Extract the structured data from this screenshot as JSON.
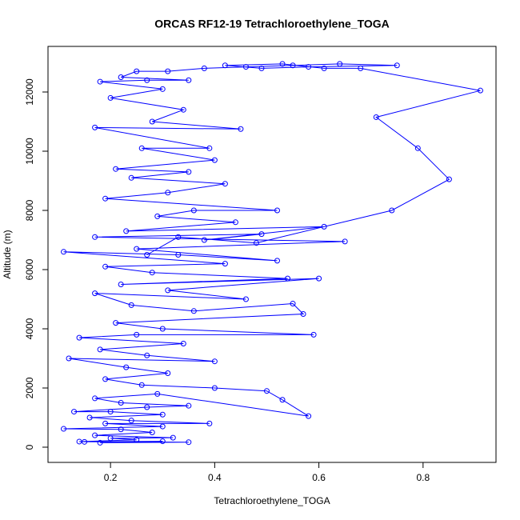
{
  "chart_data": {
    "type": "line",
    "title": "ORCAS RF12-19 Tetrachloroethylene_TOGA",
    "x_label": "Tetrachloroethylene_TOGA",
    "y_label": "Altitude (m)",
    "color": "#0000ff",
    "markers": true,
    "xlim": [
      0.08,
      0.94
    ],
    "ylim": [
      -514,
      13541
    ],
    "xticks": [
      0.2,
      0.4,
      0.6,
      0.8
    ],
    "yticks": [
      0,
      2000,
      4000,
      6000,
      8000,
      10000,
      12000
    ],
    "x": [
      0.15,
      0.3,
      0.18,
      0.35,
      0.14,
      0.25,
      0.2,
      0.32,
      0.17,
      0.28,
      0.22,
      0.11,
      0.3,
      0.19,
      0.39,
      0.24,
      0.16,
      0.3,
      0.2,
      0.13,
      0.27,
      0.35,
      0.22,
      0.17,
      0.29,
      0.58,
      0.53,
      0.5,
      0.4,
      0.26,
      0.19,
      0.31,
      0.23,
      0.12,
      0.4,
      0.27,
      0.18,
      0.34,
      0.14,
      0.25,
      0.59,
      0.3,
      0.21,
      0.57,
      0.55,
      0.36,
      0.24,
      0.17,
      0.46,
      0.31,
      0.6,
      0.22,
      0.54,
      0.28,
      0.19,
      0.42,
      0.11,
      0.33,
      0.52,
      0.25,
      0.65,
      0.17,
      0.49,
      0.38,
      0.61,
      0.23,
      0.44,
      0.29,
      0.36,
      0.52,
      0.19,
      0.31,
      0.42,
      0.24,
      0.35,
      0.21,
      0.4,
      0.26,
      0.39,
      0.17,
      0.45,
      0.28,
      0.34,
      0.2,
      0.3,
      0.18,
      0.27,
      0.35,
      0.22,
      0.25,
      0.31,
      0.38,
      0.46,
      0.55,
      0.64,
      0.75,
      0.58,
      0.49,
      0.42,
      0.53,
      0.61,
      0.68,
      0.91,
      0.71,
      0.79,
      0.85,
      0.74,
      0.48,
      0.33,
      0.27
    ],
    "values": [
      180,
      200,
      150,
      170,
      190,
      250,
      300,
      320,
      400,
      500,
      600,
      620,
      700,
      800,
      800,
      900,
      1000,
      1100,
      1200,
      1200,
      1350,
      1400,
      1500,
      1650,
      1800,
      1050,
      1600,
      1900,
      2000,
      2100,
      2300,
      2500,
      2700,
      3000,
      2900,
      3100,
      3300,
      3500,
      3700,
      3800,
      3800,
      4000,
      4200,
      4500,
      4850,
      4600,
      4800,
      5200,
      5000,
      5300,
      5700,
      5500,
      5700,
      5900,
      6100,
      6200,
      6600,
      6500,
      6300,
      6700,
      6950,
      7100,
      7200,
      7000,
      7450,
      7300,
      7600,
      7800,
      8000,
      8000,
      8400,
      8600,
      8900,
      9100,
      9300,
      9400,
      9700,
      10100,
      10100,
      10800,
      10750,
      11000,
      11400,
      11800,
      12100,
      12350,
      12400,
      12400,
      12500,
      12700,
      12700,
      12800,
      12850,
      12900,
      12950,
      12900,
      12850,
      12800,
      12900,
      12950,
      12800,
      12800,
      12050,
      11150,
      10100,
      9050,
      8000,
      6900,
      7100,
      6500
    ]
  }
}
